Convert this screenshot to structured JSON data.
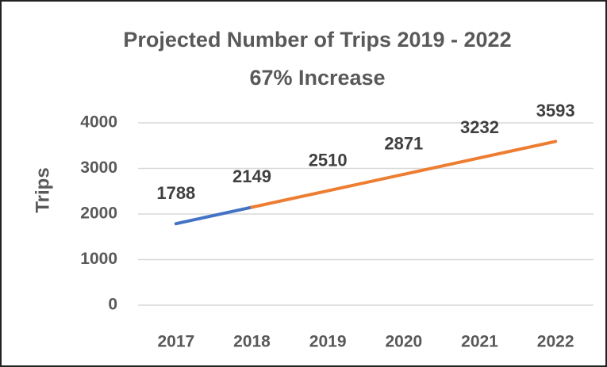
{
  "chart_data": {
    "type": "line",
    "title": "Projected Number of Trips 2019 - 2022",
    "subtitle": "67% Increase",
    "y_label": "Trips",
    "categories": [
      "2017",
      "2018",
      "2019",
      "2020",
      "2021",
      "2022"
    ],
    "series": [
      {
        "color": "#4472c4",
        "values": [
          1788,
          2149,
          null,
          null,
          null,
          null
        ]
      },
      {
        "color": "#ed7d31",
        "values": [
          null,
          2149,
          2510,
          2871,
          3232,
          3593
        ]
      }
    ],
    "ylim": [
      0,
      4000
    ],
    "yticks": [
      0,
      1000,
      2000,
      3000,
      4000
    ],
    "grid": true
  }
}
